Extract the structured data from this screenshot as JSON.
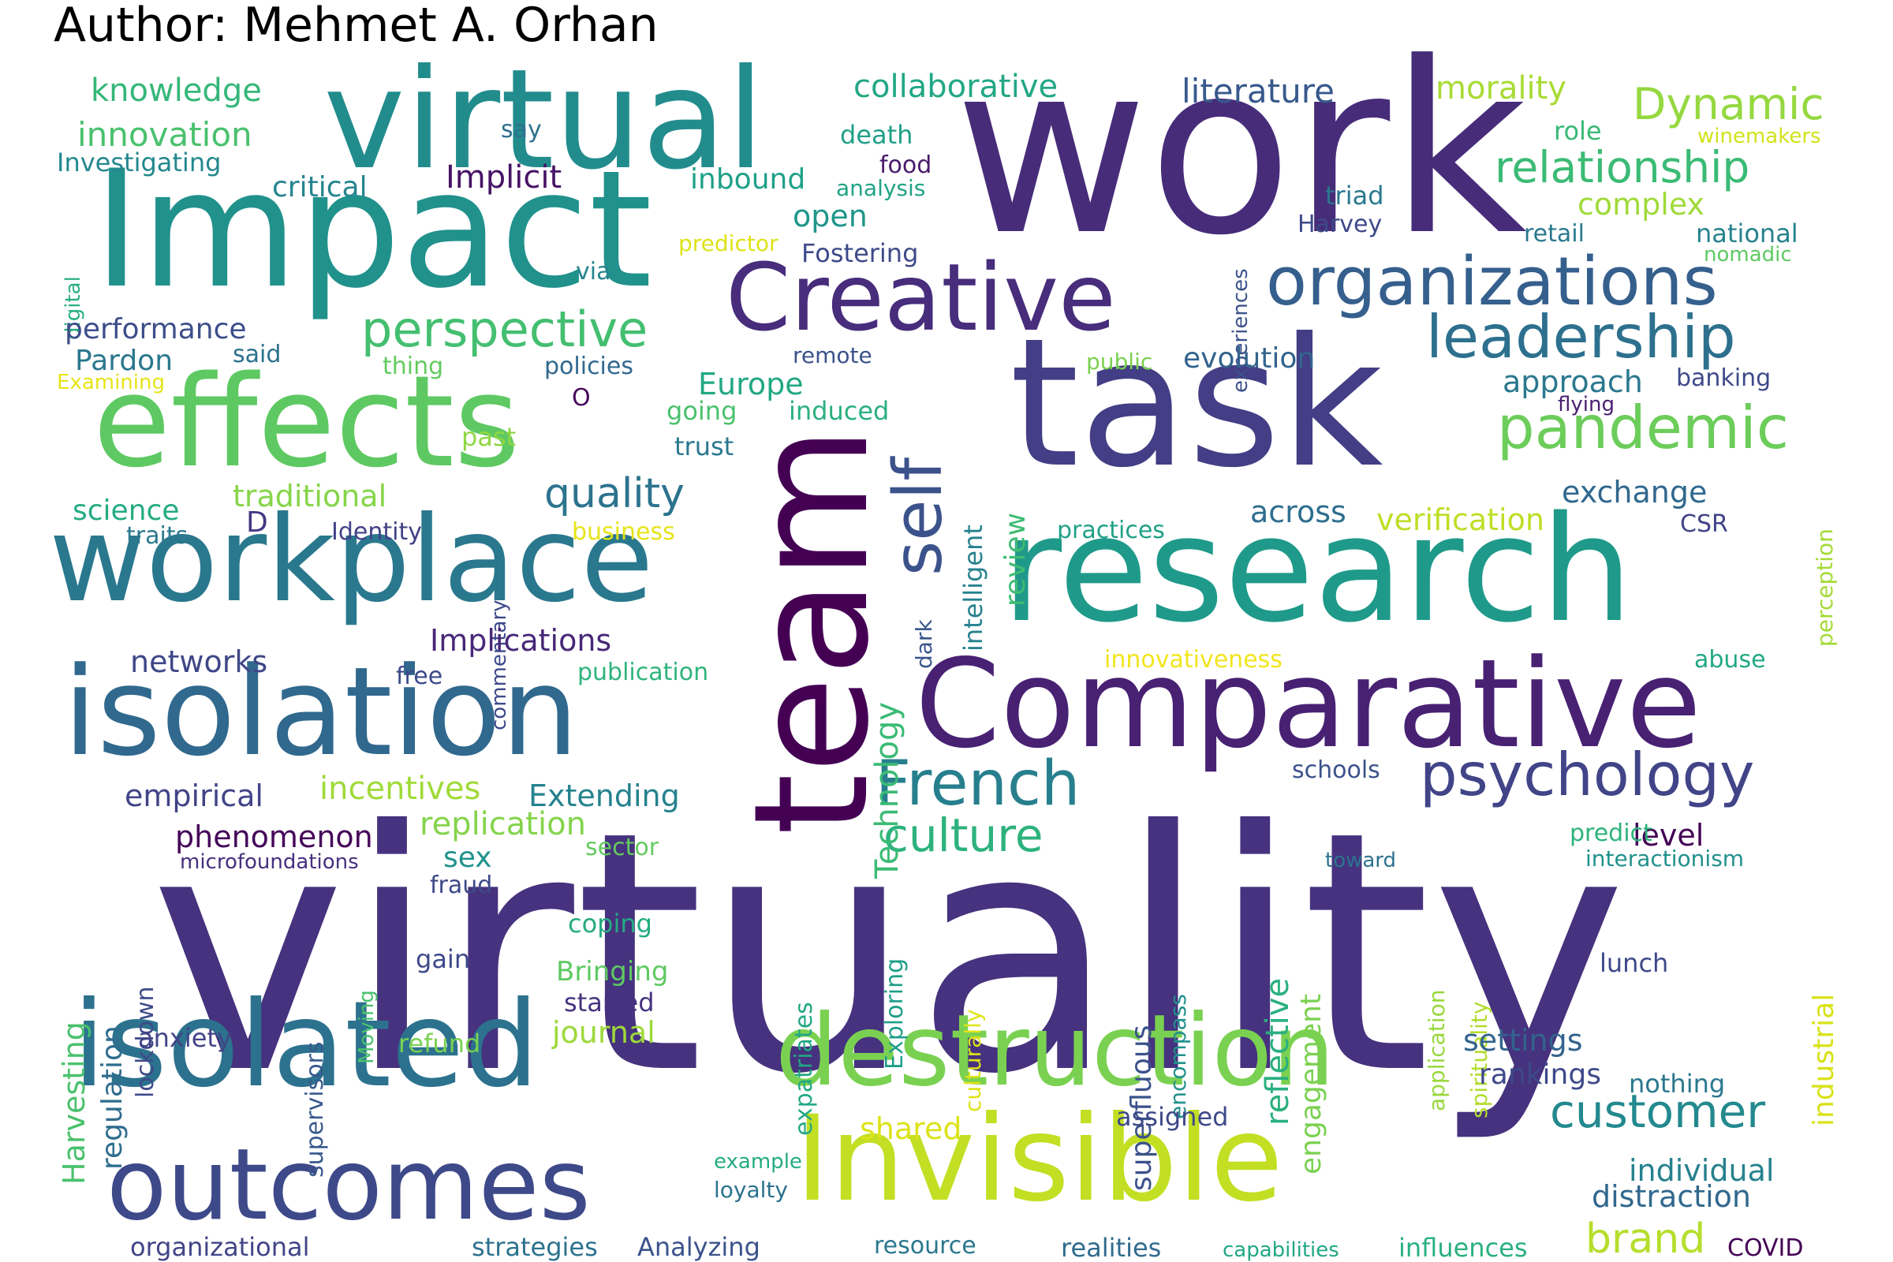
{
  "author_line": "Author: Mehmet A. Orhan",
  "word_cloud": {
    "palette": "viridis",
    "words": [
      {
        "text": "virtuality",
        "color": "#46327e"
      },
      {
        "text": "work",
        "color": "#472c7a"
      },
      {
        "text": "Impact",
        "color": "#21918c"
      },
      {
        "text": "task",
        "color": "#433e85"
      },
      {
        "text": "research",
        "color": "#1f9a8a"
      },
      {
        "text": "virtual",
        "color": "#228c8d"
      },
      {
        "text": "effects",
        "color": "#5ec962"
      },
      {
        "text": "workplace",
        "color": "#2a788e"
      },
      {
        "text": "team",
        "color": "#440154"
      },
      {
        "text": "Comparative",
        "color": "#482173"
      },
      {
        "text": "isolation",
        "color": "#31688e"
      },
      {
        "text": "isolated",
        "color": "#2c728e"
      },
      {
        "text": "Invisible",
        "color": "#c2df23"
      },
      {
        "text": "destruction",
        "color": "#7ad151"
      },
      {
        "text": "outcomes",
        "color": "#3e4989"
      },
      {
        "text": "Creative",
        "color": "#472d7b"
      },
      {
        "text": "organizations",
        "color": "#355f8d"
      },
      {
        "text": "leadership",
        "color": "#2d708e"
      },
      {
        "text": "pandemic",
        "color": "#6ccd5a"
      },
      {
        "text": "perspective",
        "color": "#44bf70"
      },
      {
        "text": "self",
        "color": "#3b528b"
      },
      {
        "text": "French",
        "color": "#277f8e"
      },
      {
        "text": "psychology",
        "color": "#414487"
      },
      {
        "text": "customer",
        "color": "#23898e"
      },
      {
        "text": "culture",
        "color": "#2db27d"
      },
      {
        "text": "quality",
        "color": "#2c738e"
      },
      {
        "text": "relationship",
        "color": "#3bbb75"
      },
      {
        "text": "Dynamic",
        "color": "#95d840"
      },
      {
        "text": "brand",
        "color": "#b5de2b"
      },
      {
        "text": "literature",
        "color": "#38598c"
      },
      {
        "text": "collaborative",
        "color": "#22a785"
      },
      {
        "text": "knowledge",
        "color": "#35b779"
      },
      {
        "text": "innovation",
        "color": "#4ac16d"
      },
      {
        "text": "morality",
        "color": "#a8db34"
      },
      {
        "text": "Implicit",
        "color": "#471365"
      },
      {
        "text": "critical",
        "color": "#25848e"
      },
      {
        "text": "inbound",
        "color": "#1fa088"
      },
      {
        "text": "open",
        "color": "#1f968b"
      },
      {
        "text": "complex",
        "color": "#a0da39"
      },
      {
        "text": "triad",
        "color": "#2a788e"
      },
      {
        "text": "Harvey",
        "color": "#3e4989"
      },
      {
        "text": "retail",
        "color": "#2a788e"
      },
      {
        "text": "national",
        "color": "#26828e"
      },
      {
        "text": "nomadic",
        "color": "#5ec962"
      },
      {
        "text": "winemakers",
        "color": "#d2e21b"
      },
      {
        "text": "role",
        "color": "#38b977"
      },
      {
        "text": "death",
        "color": "#1fa088"
      },
      {
        "text": "food",
        "color": "#481a6c"
      },
      {
        "text": "analysis",
        "color": "#20a386"
      },
      {
        "text": "say",
        "color": "#2e6f8e"
      },
      {
        "text": "Investigating",
        "color": "#24878e"
      },
      {
        "text": "digital",
        "color": "#29af7f"
      },
      {
        "text": "predictor",
        "color": "#dde318"
      },
      {
        "text": "Fostering",
        "color": "#3e4a89"
      },
      {
        "text": "via",
        "color": "#25858e"
      },
      {
        "text": "experiences",
        "color": "#3b528b"
      },
      {
        "text": "performance",
        "color": "#3d4e8a"
      },
      {
        "text": "Pardon",
        "color": "#2a788e"
      },
      {
        "text": "said",
        "color": "#2c718e"
      },
      {
        "text": "thing",
        "color": "#62cb5f"
      },
      {
        "text": "Examining",
        "color": "#e7e419"
      },
      {
        "text": "policies",
        "color": "#31688e"
      },
      {
        "text": "remote",
        "color": "#3b528b"
      },
      {
        "text": "public",
        "color": "#7ad151"
      },
      {
        "text": "evolution",
        "color": "#33638d"
      },
      {
        "text": "approach",
        "color": "#2a788e"
      },
      {
        "text": "banking",
        "color": "#3e4a89"
      },
      {
        "text": "flying",
        "color": "#481f70"
      },
      {
        "text": "O",
        "color": "#46085c"
      },
      {
        "text": "Europe",
        "color": "#22a884"
      },
      {
        "text": "going",
        "color": "#4ac16d"
      },
      {
        "text": "induced",
        "color": "#2ab07f"
      },
      {
        "text": "past",
        "color": "#8fd744"
      },
      {
        "text": "trust",
        "color": "#2a788e"
      },
      {
        "text": "intelligent",
        "color": "#26828e"
      },
      {
        "text": "review",
        "color": "#3fbc73"
      },
      {
        "text": "perception",
        "color": "#a5db36"
      },
      {
        "text": "exchange",
        "color": "#31688e"
      },
      {
        "text": "science",
        "color": "#25ab82"
      },
      {
        "text": "traditional",
        "color": "#86d549"
      },
      {
        "text": "D",
        "color": "#453882"
      },
      {
        "text": "traits",
        "color": "#2a788e"
      },
      {
        "text": "Identity",
        "color": "#424186"
      },
      {
        "text": "commentary",
        "color": "#3e4a89"
      },
      {
        "text": "business",
        "color": "#e5e419"
      },
      {
        "text": "Technology",
        "color": "#3bbb75"
      },
      {
        "text": "dark",
        "color": "#39568c"
      },
      {
        "text": "practices",
        "color": "#1fa187"
      },
      {
        "text": "across",
        "color": "#2e6e8e"
      },
      {
        "text": "verification",
        "color": "#bddf26"
      },
      {
        "text": "CSR",
        "color": "#414487"
      },
      {
        "text": "Implications",
        "color": "#482878"
      },
      {
        "text": "networks",
        "color": "#3f4788"
      },
      {
        "text": "free",
        "color": "#3e4989"
      },
      {
        "text": "publication",
        "color": "#2fb47c"
      },
      {
        "text": "innovativeness",
        "color": "#f1e51d"
      },
      {
        "text": "abuse",
        "color": "#22a884"
      },
      {
        "text": "schools",
        "color": "#3b528b"
      },
      {
        "text": "empirical",
        "color": "#414487"
      },
      {
        "text": "incentives",
        "color": "#a0da39"
      },
      {
        "text": "Extending",
        "color": "#26828e"
      },
      {
        "text": "replication",
        "color": "#84d44b"
      },
      {
        "text": "phenomenon",
        "color": "#450559"
      },
      {
        "text": "sex",
        "color": "#20928c"
      },
      {
        "text": "sector",
        "color": "#63cb5f"
      },
      {
        "text": "microfoundations",
        "color": "#46307e"
      },
      {
        "text": "fraud",
        "color": "#3e4989"
      },
      {
        "text": "superfluous",
        "color": "#3b528b"
      },
      {
        "text": "reflective",
        "color": "#2ab07f"
      },
      {
        "text": "engagement",
        "color": "#7ad151"
      },
      {
        "text": "level",
        "color": "#440154"
      },
      {
        "text": "predict",
        "color": "#2eb37c"
      },
      {
        "text": "toward",
        "color": "#2c728e"
      },
      {
        "text": "interactionism",
        "color": "#21918c"
      },
      {
        "text": "industrial",
        "color": "#d8e219"
      },
      {
        "text": "Harvesting",
        "color": "#4ac16d"
      },
      {
        "text": "regulation",
        "color": "#2f6c8e"
      },
      {
        "text": "lockdown",
        "color": "#3e4a89"
      },
      {
        "text": "coping",
        "color": "#25ab82"
      },
      {
        "text": "gain",
        "color": "#3e4989"
      },
      {
        "text": "Bringing",
        "color": "#5ec962"
      },
      {
        "text": "started",
        "color": "#46337f"
      },
      {
        "text": "supervisors",
        "color": "#38598c"
      },
      {
        "text": "Moving",
        "color": "#4ac16d"
      },
      {
        "text": "expatriates",
        "color": "#22a884"
      },
      {
        "text": "Exploring",
        "color": "#1f9e89"
      },
      {
        "text": "culturally",
        "color": "#dde318"
      },
      {
        "text": "encompass",
        "color": "#21918c"
      },
      {
        "text": "application",
        "color": "#99d83d"
      },
      {
        "text": "spirituality",
        "color": "#b2dd2d"
      },
      {
        "text": "lunch",
        "color": "#3e4989"
      },
      {
        "text": "journal",
        "color": "#9dd93b"
      },
      {
        "text": "settings",
        "color": "#33638d"
      },
      {
        "text": "anxiety",
        "color": "#414487"
      },
      {
        "text": "refund",
        "color": "#7ad151"
      },
      {
        "text": "rankings",
        "color": "#3e4989"
      },
      {
        "text": "nothing",
        "color": "#2a788e"
      },
      {
        "text": "shared",
        "color": "#dde318"
      },
      {
        "text": "assigned",
        "color": "#3e4989"
      },
      {
        "text": "individual",
        "color": "#26818e"
      },
      {
        "text": "distraction",
        "color": "#31688e"
      },
      {
        "text": "example",
        "color": "#25ab82"
      },
      {
        "text": "loyalty",
        "color": "#2c728e"
      },
      {
        "text": "organizational",
        "color": "#414487"
      },
      {
        "text": "strategies",
        "color": "#2c728e"
      },
      {
        "text": "Analyzing",
        "color": "#3b528b"
      },
      {
        "text": "resource",
        "color": "#2a788e"
      },
      {
        "text": "realities",
        "color": "#2f6c8e"
      },
      {
        "text": "capabilities",
        "color": "#22a884"
      },
      {
        "text": "influences",
        "color": "#2ab07f"
      },
      {
        "text": "COVID",
        "color": "#440154"
      }
    ]
  }
}
